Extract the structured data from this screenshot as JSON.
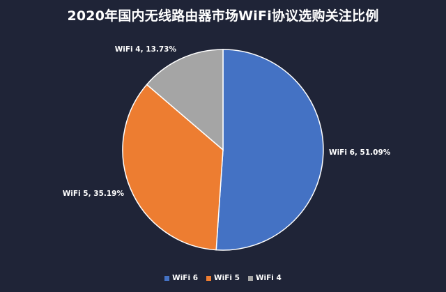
{
  "chart_data": {
    "type": "pie",
    "title": "2020年国内无线路由器市场WiFi协议选购关注比例",
    "slices": [
      {
        "name": "WiFi 6",
        "value": 51.09,
        "label": "WiFi 6, 51.09%",
        "color": "#4472c4"
      },
      {
        "name": "WiFi 5",
        "value": 35.19,
        "label": "WiFi 5, 35.19%",
        "color": "#ed7d31"
      },
      {
        "name": "WiFi 4",
        "value": 13.73,
        "label": "WiFi 4, 13.73%",
        "color": "#a5a5a5"
      }
    ],
    "start_angle": "12 o'clock",
    "direction": "clockwise",
    "legend": {
      "position": "bottom",
      "entries": [
        "WiFi 6",
        "WiFi 5",
        "WiFi 4"
      ]
    },
    "background": "#1f2437"
  }
}
